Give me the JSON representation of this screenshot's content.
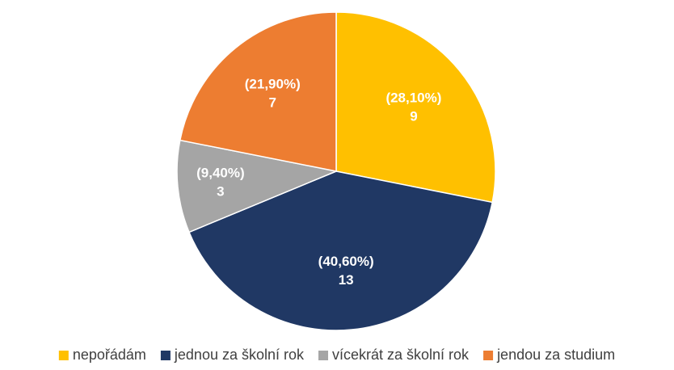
{
  "chart_data": {
    "type": "pie",
    "categories": [
      "nepořádám",
      "jednou za školní rok",
      "vícekrát za školní rok",
      "jendou za studium"
    ],
    "values": [
      9,
      13,
      3,
      7
    ],
    "percentages": [
      28.1,
      40.6,
      9.4,
      21.9
    ],
    "percentage_labels": [
      "(28,10%)",
      "(40,60%)",
      "(9,40%)",
      "(21,90%)"
    ],
    "colors": [
      "#FFC000",
      "#203864",
      "#A5A5A5",
      "#ED7D31"
    ],
    "legend": "bottom"
  }
}
